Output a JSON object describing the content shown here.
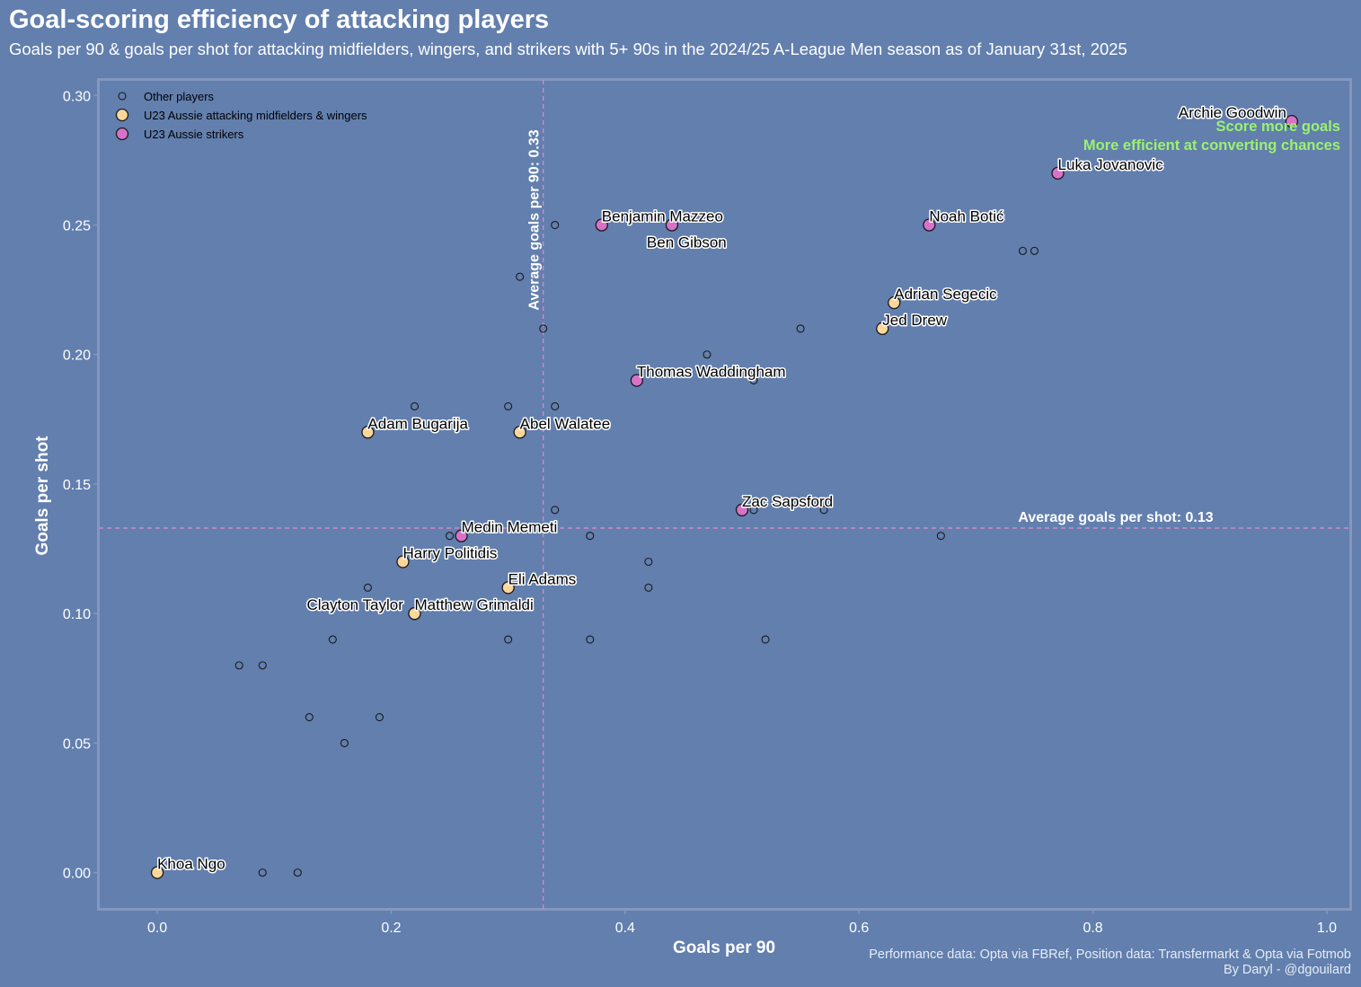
{
  "title": "Goal-scoring efficiency of attacking players",
  "subtitle": "Goals per 90 & goals per shot for attacking midfielders, wingers, and strikers with 5+ 90s in the 2024/25 A-League Men season as of January 31st, 2025",
  "credits": {
    "line1": "Performance data: Opta via FBRef, Position data: Transfermarkt & Opta via Fotmob",
    "line2": "By Daryl - @dgouilard"
  },
  "colors": {
    "background": "#627fae",
    "other_marker": "none",
    "attacking_mid": "#fcd79a",
    "striker": "#d772c8",
    "avg_line": "#e38ccf",
    "quadrant_text": "#9bf26f"
  },
  "chart_data": {
    "type": "scatter",
    "title": "Goal-scoring efficiency of attacking players",
    "xlabel": "Goals per 90",
    "ylabel": "Goals per shot",
    "xlim": [
      -0.05,
      1.02
    ],
    "ylim": [
      -0.014,
      0.306
    ],
    "xticks": [
      0.0,
      0.2,
      0.4,
      0.6,
      0.8,
      1.0
    ],
    "xtick_labels": [
      "0.0",
      "0.2",
      "0.4",
      "0.6",
      "0.8",
      "1.0"
    ],
    "yticks": [
      0.0,
      0.05,
      0.1,
      0.15,
      0.2,
      0.25,
      0.3
    ],
    "ytick_labels": [
      "0.00",
      "0.05",
      "0.10",
      "0.15",
      "0.20",
      "0.25",
      "0.30"
    ],
    "legend": {
      "placement": "top-left",
      "entries": [
        {
          "key": "other",
          "label": "Other players"
        },
        {
          "key": "mid",
          "label": "U23 Aussie attacking midfielders & wingers"
        },
        {
          "key": "striker",
          "label": "U23 Aussie strikers"
        }
      ]
    },
    "averages": {
      "x": 0.33,
      "y": 0.133,
      "x_label": "Average goals per 90: 0.33",
      "y_label": "Average goals per shot: 0.13"
    },
    "quadrant_labels": [
      "Score more goals",
      "More efficient at converting chances"
    ],
    "series": [
      {
        "name": "Other players",
        "key": "other",
        "points": [
          {
            "x": 0.09,
            "y": 0.0
          },
          {
            "x": 0.12,
            "y": 0.0
          },
          {
            "x": 0.16,
            "y": 0.05
          },
          {
            "x": 0.13,
            "y": 0.06
          },
          {
            "x": 0.19,
            "y": 0.06
          },
          {
            "x": 0.07,
            "y": 0.08
          },
          {
            "x": 0.09,
            "y": 0.08
          },
          {
            "x": 0.15,
            "y": 0.09
          },
          {
            "x": 0.3,
            "y": 0.09
          },
          {
            "x": 0.37,
            "y": 0.09
          },
          {
            "x": 0.52,
            "y": 0.09
          },
          {
            "x": 0.18,
            "y": 0.11
          },
          {
            "x": 0.42,
            "y": 0.11
          },
          {
            "x": 0.42,
            "y": 0.12
          },
          {
            "x": 0.25,
            "y": 0.13
          },
          {
            "x": 0.37,
            "y": 0.13
          },
          {
            "x": 0.67,
            "y": 0.13
          },
          {
            "x": 0.34,
            "y": 0.14
          },
          {
            "x": 0.51,
            "y": 0.14
          },
          {
            "x": 0.57,
            "y": 0.14
          },
          {
            "x": 0.22,
            "y": 0.18
          },
          {
            "x": 0.3,
            "y": 0.18
          },
          {
            "x": 0.34,
            "y": 0.18
          },
          {
            "x": 0.51,
            "y": 0.19
          },
          {
            "x": 0.47,
            "y": 0.2
          },
          {
            "x": 0.33,
            "y": 0.21
          },
          {
            "x": 0.55,
            "y": 0.21
          },
          {
            "x": 0.31,
            "y": 0.23
          },
          {
            "x": 0.74,
            "y": 0.24
          },
          {
            "x": 0.75,
            "y": 0.24
          },
          {
            "x": 0.34,
            "y": 0.25
          }
        ]
      },
      {
        "name": "U23 Aussie attacking midfielders & wingers",
        "key": "mid",
        "points": [
          {
            "x": 0.0,
            "y": 0.0,
            "label": "Khoa Ngo"
          },
          {
            "x": 0.22,
            "y": 0.1,
            "label": "Clayton Taylor"
          },
          {
            "x": 0.22,
            "y": 0.1,
            "label": "Matthew Grimaldi"
          },
          {
            "x": 0.3,
            "y": 0.11,
            "label": "Eli Adams"
          },
          {
            "x": 0.21,
            "y": 0.12,
            "label": "Harry Politidis"
          },
          {
            "x": 0.18,
            "y": 0.17,
            "label": "Adam Bugarija"
          },
          {
            "x": 0.31,
            "y": 0.17,
            "label": "Abel Walatee"
          },
          {
            "x": 0.62,
            "y": 0.21,
            "label": "Jed Drew"
          },
          {
            "x": 0.63,
            "y": 0.22,
            "label": "Adrian Segecic"
          }
        ]
      },
      {
        "name": "U23 Aussie strikers",
        "key": "striker",
        "points": [
          {
            "x": 0.26,
            "y": 0.13,
            "label": "Medin Memeti"
          },
          {
            "x": 0.5,
            "y": 0.14,
            "label": "Zac Sapsford"
          },
          {
            "x": 0.41,
            "y": 0.19,
            "label": "Thomas Waddingham"
          },
          {
            "x": 0.38,
            "y": 0.25,
            "label": "Benjamin Mazzeo"
          },
          {
            "x": 0.44,
            "y": 0.25,
            "label": "Ben Gibson"
          },
          {
            "x": 0.66,
            "y": 0.25,
            "label": "Noah Botić"
          },
          {
            "x": 0.77,
            "y": 0.27,
            "label": "Luka Jovanovic"
          },
          {
            "x": 0.97,
            "y": 0.29,
            "label": "Archie Goodwin"
          }
        ]
      }
    ]
  }
}
